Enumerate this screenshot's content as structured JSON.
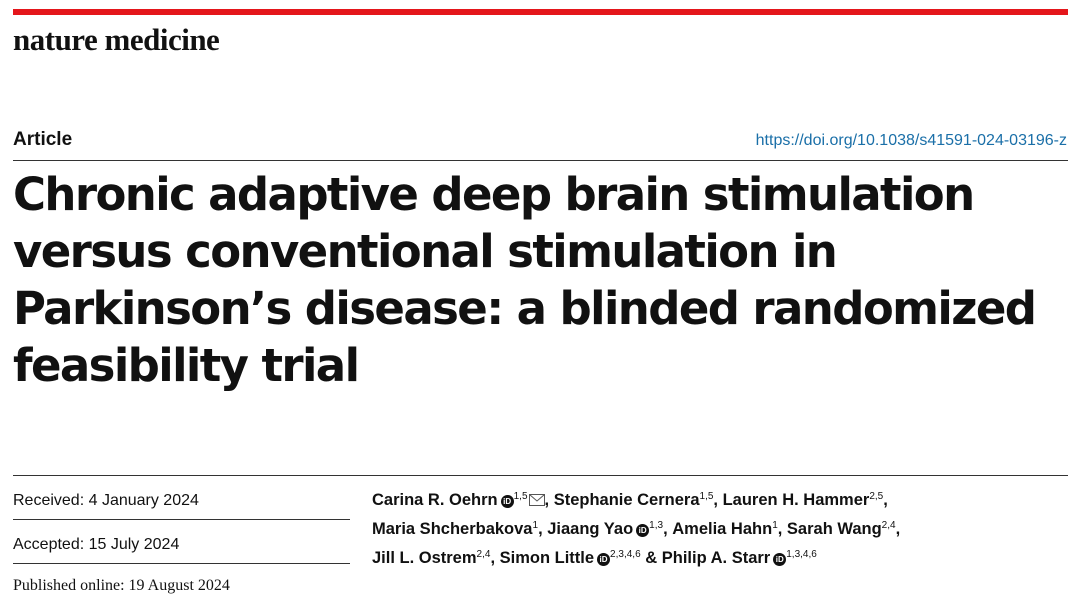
{
  "header": {
    "journal": "nature medicine",
    "article_type": "Article",
    "doi": "https://doi.org/10.1038/s41591-024-03196-z"
  },
  "title": "Chronic adaptive deep brain stimulation versus conventional stimulation in Parkinson’s disease: a blinded randomized feasibility trial",
  "dates": {
    "received": "Received: 4 January 2024",
    "accepted": "Accepted: 15 July 2024",
    "published": "Published online: 19 August 2024"
  },
  "authors": [
    {
      "name": "Carina R. Oehrn",
      "aff": "1,5"
    },
    {
      "name": "Stephanie Cernera",
      "aff": "1,5"
    },
    {
      "name": "Lauren H. Hammer",
      "aff": "2,5"
    },
    {
      "name": "Maria Shcherbakova",
      "aff": "1"
    },
    {
      "name": "Jiaang Yao",
      "aff": "1,3"
    },
    {
      "name": "Amelia Hahn",
      "aff": "1"
    },
    {
      "name": "Sarah Wang",
      "aff": "2,4"
    },
    {
      "name": "Jill L. Ostrem",
      "aff": "2,4"
    },
    {
      "name": "Simon Little",
      "aff": "2,3,4,6"
    },
    {
      "name": "Philip A. Starr",
      "aff": "1,3,4,6"
    }
  ],
  "separators": {
    "comma": ", ",
    "and": " & "
  },
  "icons": {
    "orcid": "iD",
    "mail": "mail-icon"
  },
  "colors": {
    "accent_bar": "#e4161b",
    "doi_link": "#1a6fa8"
  }
}
